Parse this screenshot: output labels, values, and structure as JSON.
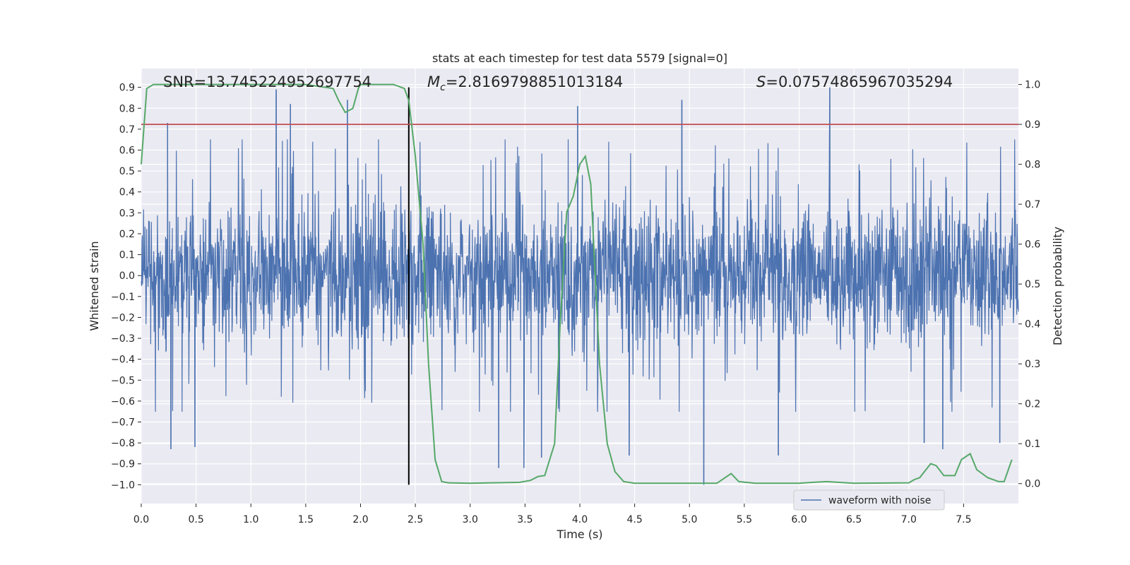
{
  "chart_data": {
    "type": "line",
    "title": "stats at each timestep for test data 5579 [signal=0]",
    "xlabel": "Time (s)",
    "ylabel_left": "Whitened strain",
    "ylabel_right": "Detection probability",
    "xlim": [
      0.0,
      8.0
    ],
    "ylim_left": [
      -1.09,
      0.99
    ],
    "ylim_right": [
      -0.05,
      1.04
    ],
    "x_ticks": [
      "0.0",
      "0.5",
      "1.0",
      "1.5",
      "2.0",
      "2.5",
      "3.0",
      "3.5",
      "4.0",
      "4.5",
      "5.0",
      "5.5",
      "6.0",
      "6.5",
      "7.0",
      "7.5"
    ],
    "y_left_ticks": [
      "0.9",
      "0.8",
      "0.7",
      "0.6",
      "0.5",
      "0.4",
      "0.3",
      "0.2",
      "0.1",
      "0.0",
      "−0.1",
      "−0.2",
      "−0.3",
      "−0.4",
      "−0.5",
      "−0.6",
      "−0.7",
      "−0.8",
      "−0.9",
      "−1.0"
    ],
    "y_right_ticks": [
      "1.0",
      "0.9",
      "0.8",
      "0.7",
      "0.6",
      "0.5",
      "0.4",
      "0.3",
      "0.2",
      "0.1",
      "0.0"
    ],
    "annotations": {
      "snr_text": "SNR=13.745224952697754",
      "mc_symbol": "M",
      "mc_sub": "c",
      "mc_value": "=2.8169798851013184",
      "s_symbol": "S",
      "s_value": "=0.07574865967035294"
    },
    "legend": {
      "label": "waveform with noise",
      "placement": "lower-right"
    },
    "threshold_line": {
      "axis": "right",
      "value": 0.9,
      "color": "#c44e52"
    },
    "marker_line": {
      "x": 2.44,
      "y_from": -1.0,
      "y_to": 0.9,
      "color": "#000000"
    },
    "series": [
      {
        "name": "waveform with noise",
        "axis": "left",
        "color": "#4c72b0",
        "kind": "noise",
        "typical_range": [
          -0.42,
          0.42
        ],
        "spikes": [
          {
            "x": 0.27,
            "y": -0.83
          },
          {
            "x": 0.49,
            "y": -0.82
          },
          {
            "x": 1.23,
            "y": 0.89
          },
          {
            "x": 1.88,
            "y": 0.84
          },
          {
            "x": 3.26,
            "y": -0.92
          },
          {
            "x": 3.49,
            "y": -0.92
          },
          {
            "x": 3.98,
            "y": 0.81
          },
          {
            "x": 4.93,
            "y": 0.84
          },
          {
            "x": 5.13,
            "y": -1.0
          },
          {
            "x": 6.28,
            "y": 0.9
          },
          {
            "x": 7.31,
            "y": -0.83
          },
          {
            "x": 7.83,
            "y": -0.8
          },
          {
            "x": 0.24,
            "y": 0.73
          },
          {
            "x": 1.36,
            "y": 0.82
          },
          {
            "x": 3.65,
            "y": -0.87
          },
          {
            "x": 4.45,
            "y": -0.86
          },
          {
            "x": 5.81,
            "y": -0.86
          },
          {
            "x": 7.14,
            "y": -0.8
          }
        ]
      },
      {
        "name": "detection probability",
        "axis": "right",
        "color": "#55a868",
        "x": [
          0.0,
          0.05,
          0.11,
          0.3,
          0.6,
          1.0,
          1.5,
          1.75,
          1.8,
          1.86,
          1.93,
          1.98,
          2.0,
          2.1,
          2.3,
          2.4,
          2.44,
          2.5,
          2.57,
          2.62,
          2.68,
          2.74,
          2.8,
          3.0,
          3.2,
          3.45,
          3.55,
          3.62,
          3.68,
          3.77,
          3.82,
          3.88,
          3.94,
          4.0,
          4.05,
          4.1,
          4.18,
          4.25,
          4.32,
          4.4,
          4.5,
          4.6,
          5.0,
          5.25,
          5.38,
          5.45,
          5.6,
          6.0,
          6.12,
          6.25,
          6.5,
          7.0,
          7.05,
          7.1,
          7.2,
          7.25,
          7.32,
          7.42,
          7.48,
          7.56,
          7.62,
          7.72,
          7.82,
          7.87,
          7.94
        ],
        "values": [
          0.8,
          0.99,
          1.0,
          1.0,
          1.0,
          1.0,
          1.0,
          0.99,
          0.96,
          0.93,
          0.94,
          0.99,
          1.0,
          1.0,
          1.0,
          0.99,
          0.96,
          0.82,
          0.6,
          0.3,
          0.06,
          0.005,
          0.002,
          0.001,
          0.002,
          0.003,
          0.008,
          0.018,
          0.02,
          0.1,
          0.4,
          0.68,
          0.72,
          0.8,
          0.82,
          0.75,
          0.3,
          0.1,
          0.03,
          0.005,
          0.001,
          0.001,
          0.001,
          0.001,
          0.025,
          0.005,
          0.001,
          0.001,
          0.003,
          0.005,
          0.001,
          0.002,
          0.01,
          0.015,
          0.05,
          0.045,
          0.02,
          0.02,
          0.06,
          0.075,
          0.035,
          0.015,
          0.005,
          0.005,
          0.06
        ]
      }
    ]
  }
}
